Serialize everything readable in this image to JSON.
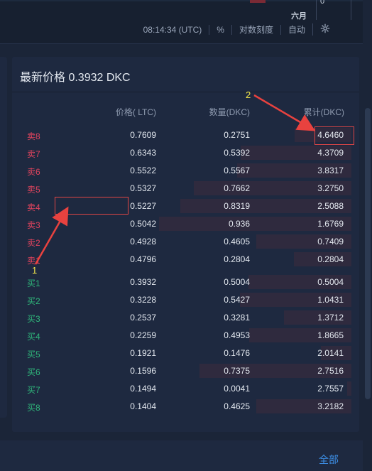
{
  "chart": {
    "zero_label": "0",
    "month_label": "六月",
    "toolbar": {
      "time": "08:14:34 (UTC)",
      "percent": "%",
      "log_scale": "对数刻度",
      "auto": "自动",
      "settings_icon": "gear-icon"
    }
  },
  "orderbook": {
    "title": "最新价格 0.3932 DKC",
    "columns": {
      "price": "价格( LTC)",
      "quantity": "数量(DKC)",
      "cumulative": "累计(DKC)"
    },
    "asks": [
      {
        "label": "卖8",
        "price": "0.7609",
        "qty": "0.2751",
        "cum": "4.6460"
      },
      {
        "label": "卖7",
        "price": "0.6343",
        "qty": "0.5392",
        "cum": "4.3709"
      },
      {
        "label": "卖6",
        "price": "0.5522",
        "qty": "0.5567",
        "cum": "3.8317"
      },
      {
        "label": "卖5",
        "price": "0.5327",
        "qty": "0.7662",
        "cum": "3.2750"
      },
      {
        "label": "卖4",
        "price": "0.5227",
        "qty": "0.8319",
        "cum": "2.5088"
      },
      {
        "label": "卖3",
        "price": "0.5042",
        "qty": "0.936",
        "cum": "1.6769"
      },
      {
        "label": "卖2",
        "price": "0.4928",
        "qty": "0.4605",
        "cum": "0.7409"
      },
      {
        "label": "卖1",
        "price": "0.4796",
        "qty": "0.2804",
        "cum": "0.2804"
      }
    ],
    "bids": [
      {
        "label": "买1",
        "price": "0.3932",
        "qty": "0.5004",
        "cum": "0.5004"
      },
      {
        "label": "买2",
        "price": "0.3228",
        "qty": "0.5427",
        "cum": "1.0431"
      },
      {
        "label": "买3",
        "price": "0.2537",
        "qty": "0.3281",
        "cum": "1.3712"
      },
      {
        "label": "买4",
        "price": "0.2259",
        "qty": "0.4953",
        "cum": "1.8665"
      },
      {
        "label": "买5",
        "price": "0.1921",
        "qty": "0.1476",
        "cum": "2.0141"
      },
      {
        "label": "买6",
        "price": "0.1596",
        "qty": "0.7375",
        "cum": "2.7516"
      },
      {
        "label": "买7",
        "price": "0.1494",
        "qty": "0.0041",
        "cum": "2.7557"
      },
      {
        "label": "买8",
        "price": "0.1404",
        "qty": "0.4625",
        "cum": "3.2182"
      }
    ]
  },
  "annotations": {
    "label_1": "1",
    "label_2": "2",
    "arrow_color": "#e8423f",
    "number_color": "#f3e64a"
  },
  "footer": {
    "all_link": "全部"
  },
  "colors": {
    "sell": "#e0445e",
    "buy": "#2fb57a",
    "link": "#3d8fe6"
  }
}
